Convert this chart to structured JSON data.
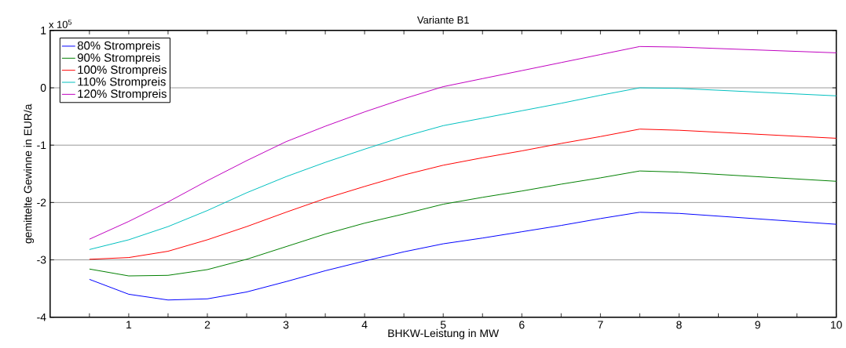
{
  "chart_data": {
    "type": "line",
    "title": "Variante B1",
    "xlabel": "BHKW-Leistung in MW",
    "ylabel": "gemittelte Gewinne in EUR/a",
    "annotations": [
      "x 10$^{5}$"
    ],
    "x": [
      0.5,
      1,
      1.5,
      2,
      2.5,
      3,
      3.5,
      4,
      4.5,
      5,
      5.5,
      6,
      6.5,
      7,
      7.5,
      8,
      10
    ],
    "series": [
      {
        "name": "80% Strompreis",
        "color": "#0000ff",
        "values": [
          -3.34,
          -3.6,
          -3.7,
          -3.68,
          -3.56,
          -3.38,
          -3.19,
          -3.02,
          -2.86,
          -2.72,
          -2.62,
          -2.51,
          -2.4,
          -2.28,
          -2.17,
          -2.19,
          -2.38
        ]
      },
      {
        "name": "90% Strompreis",
        "color": "#008000",
        "values": [
          -3.16,
          -3.28,
          -3.27,
          -3.17,
          -2.99,
          -2.77,
          -2.55,
          -2.36,
          -2.2,
          -2.03,
          -1.91,
          -1.8,
          -1.68,
          -1.57,
          -1.45,
          -1.47,
          -1.63
        ]
      },
      {
        "name": "100% Strompreis",
        "color": "#ff0000",
        "values": [
          -2.99,
          -2.96,
          -2.85,
          -2.65,
          -2.42,
          -2.17,
          -1.93,
          -1.72,
          -1.52,
          -1.35,
          -1.22,
          -1.1,
          -0.97,
          -0.85,
          -0.72,
          -0.74,
          -0.88
        ]
      },
      {
        "name": "110% Strompreis",
        "color": "#00bfbf",
        "values": [
          -2.82,
          -2.65,
          -2.42,
          -2.14,
          -1.83,
          -1.55,
          -1.3,
          -1.07,
          -0.85,
          -0.66,
          -0.53,
          -0.4,
          -0.27,
          -0.13,
          0,
          -0.01,
          -0.14
        ]
      },
      {
        "name": "120% Strompreis",
        "color": "#bf00bf",
        "values": [
          -2.64,
          -2.33,
          -1.99,
          -1.62,
          -1.27,
          -0.94,
          -0.67,
          -0.42,
          -0.19,
          0.02,
          0.16,
          0.3,
          0.44,
          0.58,
          0.72,
          0.71,
          0.61
        ]
      }
    ],
    "xlim": [
      0,
      10
    ],
    "ylim": [
      -4,
      1
    ],
    "xticks": [
      {
        "value": 0.5,
        "label": null
      },
      1,
      {
        "value": 1.5,
        "label": null
      },
      2,
      {
        "value": 2.5,
        "label": null
      },
      3,
      {
        "value": 3.5,
        "label": null
      },
      4,
      {
        "value": 4.5,
        "label": null
      },
      5,
      {
        "value": 5.5,
        "label": null
      },
      6,
      {
        "value": 6.5,
        "label": null
      },
      7,
      {
        "value": 7.5,
        "label": null
      },
      8,
      {
        "value": 8.5,
        "label": null
      },
      9,
      {
        "value": 9.5,
        "label": null
      },
      10
    ],
    "yticks": [
      -4,
      -3,
      -2,
      -1,
      0,
      1
    ],
    "grid": "y",
    "legend": "top left",
    "line_style": "solid",
    "marker": "none"
  }
}
